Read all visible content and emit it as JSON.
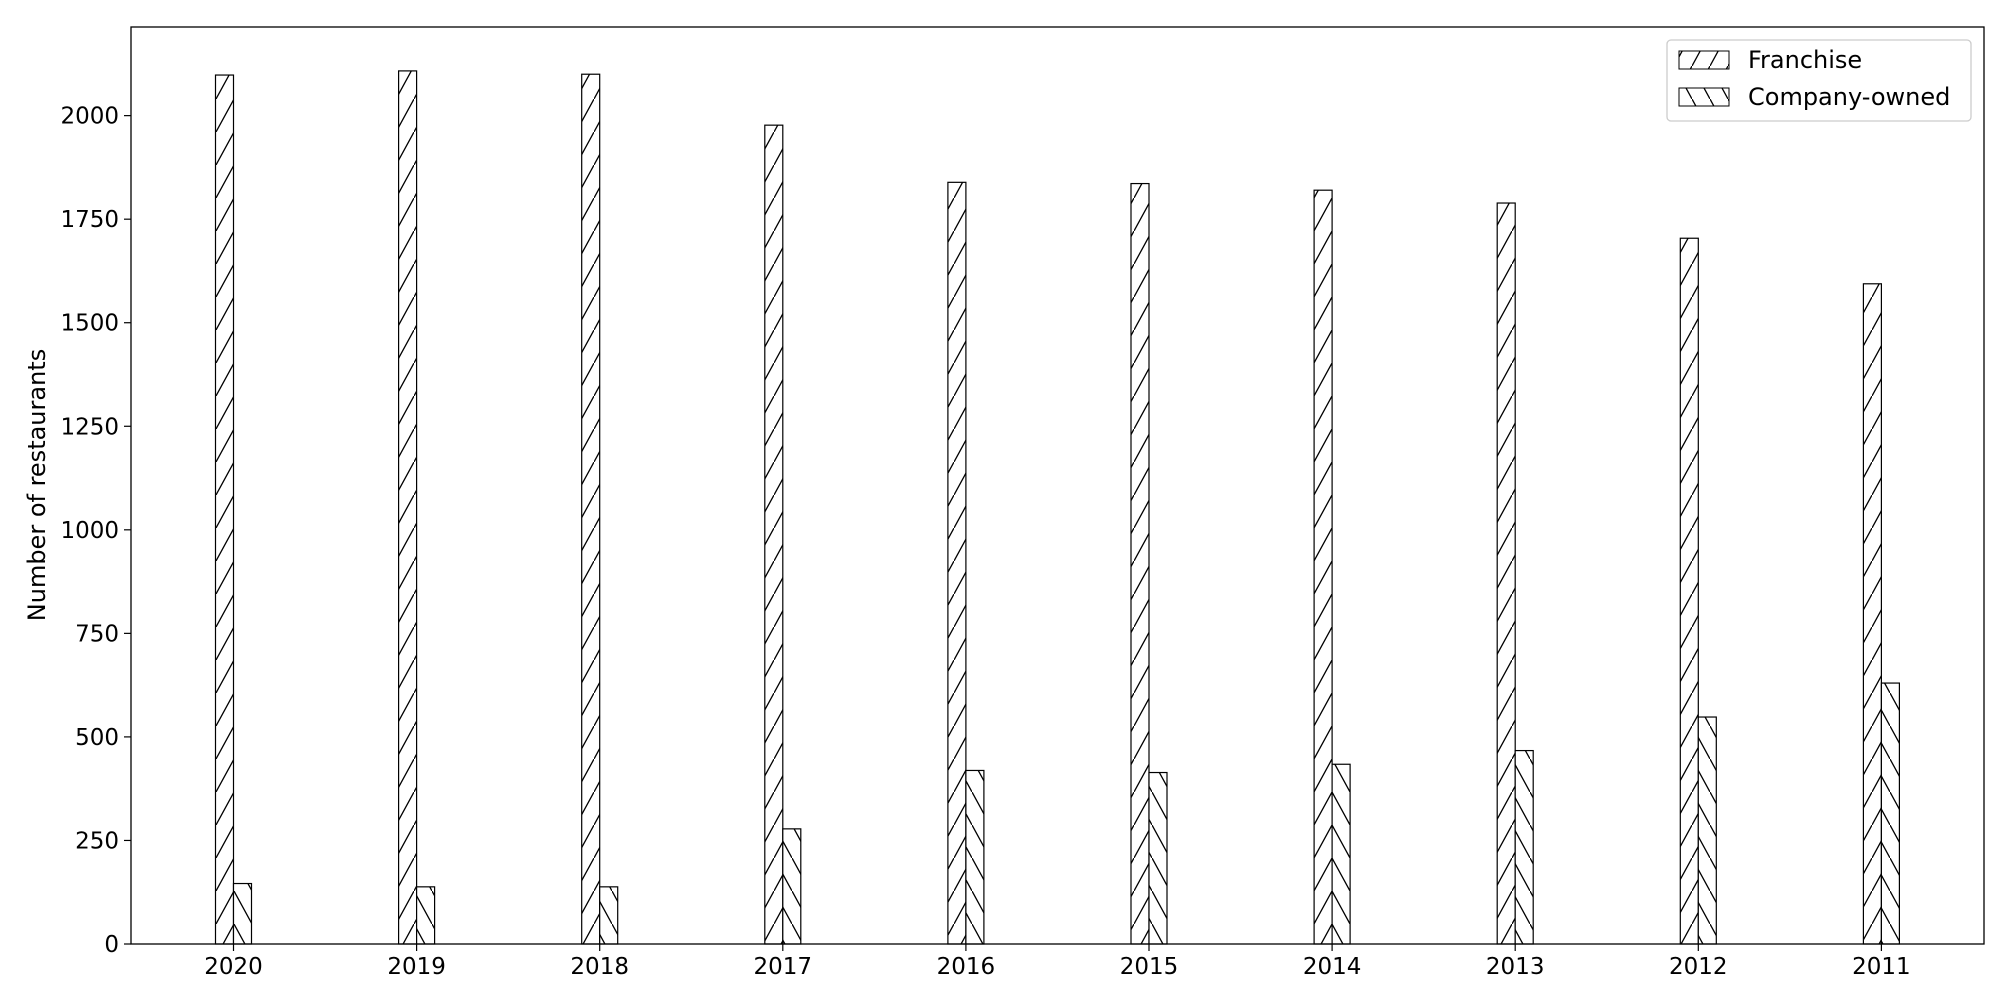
{
  "chart_data": {
    "type": "bar",
    "title": "",
    "xlabel": "",
    "ylabel": "Number of restaurants",
    "categories": [
      "2020",
      "2019",
      "2018",
      "2017",
      "2016",
      "2015",
      "2014",
      "2013",
      "2012",
      "2011"
    ],
    "series": [
      {
        "name": "Franchise",
        "hatch": "/",
        "values": [
          2098,
          2108,
          2100,
          1977,
          1839,
          1836,
          1820,
          1789,
          1704,
          1594
        ]
      },
      {
        "name": "Company-owned",
        "hatch": "\\",
        "values": [
          146,
          138,
          138,
          278,
          419,
          414,
          434,
          467,
          548,
          630
        ]
      }
    ],
    "ylim": [
      0,
      2214
    ],
    "yticks": [
      0,
      250,
      500,
      750,
      1000,
      1250,
      1500,
      1750,
      2000
    ],
    "grid": false,
    "legend_position": "top-right",
    "colors": {
      "bar_fill": "#ffffff",
      "bar_edge": "#000000",
      "axis": "#000000"
    }
  }
}
